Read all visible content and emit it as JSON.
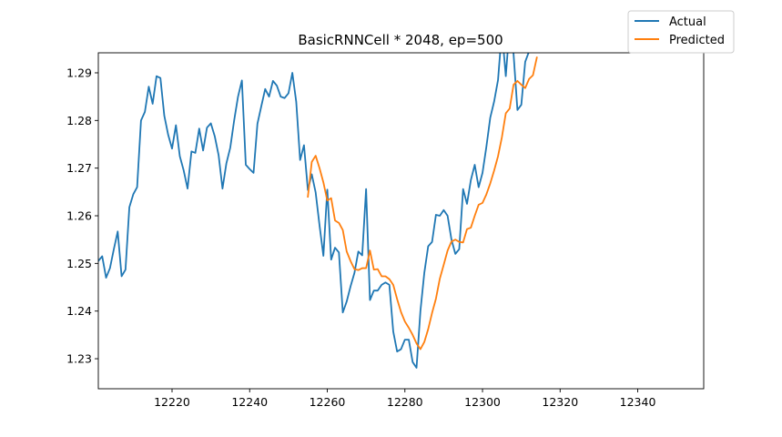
{
  "chart_data": {
    "type": "line",
    "title": "BasicRNNCell * 2048, ep=500",
    "xlabel": "",
    "ylabel": "",
    "xlim": [
      12201,
      12357
    ],
    "ylim": [
      1.2237,
      1.2942
    ],
    "x_ticks": [
      12220,
      12240,
      12260,
      12280,
      12300,
      12320,
      12340
    ],
    "y_ticks": [
      1.23,
      1.24,
      1.25,
      1.26,
      1.27,
      1.28,
      1.29
    ],
    "legend_position": "top-right (outside axes)",
    "grid": false,
    "series": [
      {
        "name": "Actual",
        "color": "#1f77b4",
        "x": [
          12201,
          12202,
          12203,
          12204,
          12205,
          12206,
          12207,
          12208,
          12209,
          12210,
          12211,
          12212,
          12213,
          12214,
          12215,
          12216,
          12217,
          12218,
          12219,
          12220,
          12221,
          12222,
          12223,
          12224,
          12225,
          12226,
          12227,
          12228,
          12229,
          12230,
          12231,
          12232,
          12233,
          12234,
          12235,
          12236,
          12237,
          12238,
          12239,
          12240,
          12241,
          12242,
          12243,
          12244,
          12245,
          12246,
          12247,
          12248,
          12249,
          12250,
          12251,
          12252,
          12253,
          12254,
          12255,
          12256,
          12257,
          12258,
          12259,
          12260,
          12261,
          12262,
          12263,
          12264,
          12265,
          12266,
          12267,
          12268,
          12269,
          12270,
          12271,
          12272,
          12273,
          12274,
          12275,
          12276,
          12277,
          12278,
          12279,
          12280,
          12281,
          12282,
          12283,
          12284,
          12285,
          12286,
          12287,
          12288,
          12289,
          12290,
          12291,
          12292,
          12293,
          12294,
          12295,
          12296,
          12297,
          12298,
          12299,
          12300,
          12301,
          12302,
          12303,
          12304,
          12305,
          12306,
          12307,
          12308,
          12309,
          12310,
          12311,
          12312,
          12313,
          12314
        ],
        "values": [
          1.2505,
          1.2515,
          1.247,
          1.249,
          1.253,
          1.2567,
          1.2473,
          1.2487,
          1.2618,
          1.2645,
          1.266,
          1.28,
          1.2818,
          1.2871,
          1.2835,
          1.2893,
          1.2889,
          1.281,
          1.277,
          1.2741,
          1.279,
          1.2725,
          1.2695,
          1.2657,
          1.2735,
          1.2732,
          1.2783,
          1.2737,
          1.2785,
          1.2794,
          1.2767,
          1.2727,
          1.2657,
          1.271,
          1.2743,
          1.28,
          1.285,
          1.2884,
          1.2707,
          1.2698,
          1.269,
          1.2793,
          1.283,
          1.2866,
          1.285,
          1.2883,
          1.2873,
          1.285,
          1.2847,
          1.2857,
          1.29,
          1.2839,
          1.2717,
          1.2748,
          1.2654,
          1.2687,
          1.2649,
          1.258,
          1.2516,
          1.2655,
          1.2508,
          1.2533,
          1.2523,
          1.2397,
          1.242,
          1.2452,
          1.248,
          1.2525,
          1.2517,
          1.2656,
          1.2423,
          1.2443,
          1.2443,
          1.2455,
          1.246,
          1.2455,
          1.2357,
          1.2315,
          1.232,
          1.234,
          1.234,
          1.2293,
          1.2281,
          1.24,
          1.248,
          1.2536,
          1.2545,
          1.2602,
          1.26,
          1.2612,
          1.26,
          1.255,
          1.252,
          1.253,
          1.2656,
          1.2625,
          1.2675,
          1.2707,
          1.266,
          1.269,
          1.2745,
          1.2806,
          1.284,
          1.2885,
          1.299,
          1.2893,
          1.3,
          1.294,
          1.2822,
          1.2833,
          1.2923,
          1.2945,
          1.2975,
          1.301
        ]
      },
      {
        "name": "Predicted",
        "color": "#ff7f0e",
        "x": [
          12255,
          12256,
          12257,
          12258,
          12259,
          12260,
          12261,
          12262,
          12263,
          12264,
          12265,
          12266,
          12267,
          12268,
          12269,
          12270,
          12271,
          12272,
          12273,
          12274,
          12275,
          12276,
          12277,
          12278,
          12279,
          12280,
          12281,
          12282,
          12283,
          12284,
          12285,
          12286,
          12287,
          12288,
          12289,
          12290,
          12291,
          12292,
          12293,
          12294,
          12295,
          12296,
          12297,
          12298,
          12299,
          12300,
          12301,
          12302,
          12303,
          12304,
          12305,
          12306,
          12307,
          12308,
          12309,
          12310,
          12311,
          12312,
          12313,
          12314
        ],
        "values": [
          1.264,
          1.2713,
          1.2726,
          1.27,
          1.267,
          1.2632,
          1.2637,
          1.259,
          1.2585,
          1.257,
          1.2525,
          1.2505,
          1.2488,
          1.2486,
          1.249,
          1.249,
          1.2527,
          1.2487,
          1.2488,
          1.2473,
          1.2473,
          1.2467,
          1.2455,
          1.2425,
          1.2398,
          1.2378,
          1.2365,
          1.235,
          1.2332,
          1.232,
          1.2335,
          1.2362,
          1.2396,
          1.2426,
          1.2468,
          1.2497,
          1.2527,
          1.2546,
          1.255,
          1.2545,
          1.2544,
          1.2572,
          1.2575,
          1.26,
          1.2623,
          1.2627,
          1.2645,
          1.2668,
          1.2695,
          1.2725,
          1.2765,
          1.2815,
          1.2825,
          1.2875,
          1.2883,
          1.2875,
          1.2868,
          1.2887,
          1.2895,
          1.2932
        ]
      }
    ]
  }
}
